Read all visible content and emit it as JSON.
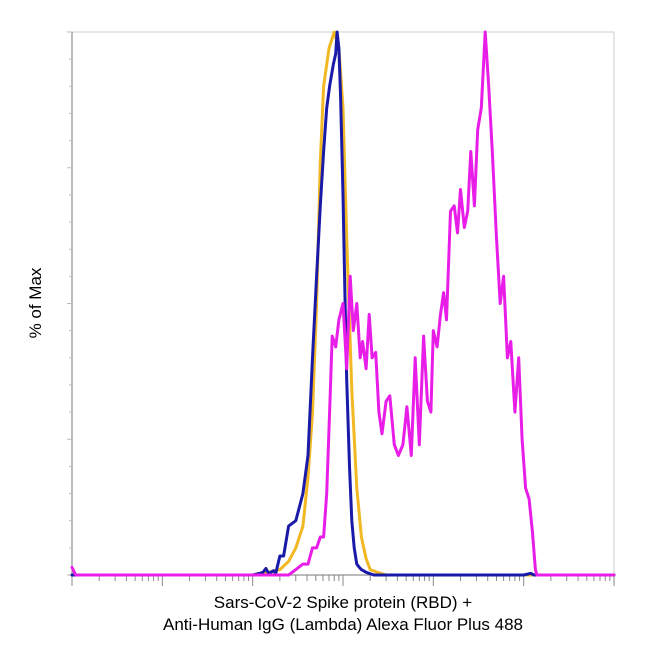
{
  "chart_data": {
    "type": "line",
    "title": "",
    "xlabel_lines": [
      "Sars-CoV-2 Spike protein (RBD) +",
      "Anti-Human IgG (Lambda) Alexa Fluor Plus 488"
    ],
    "ylabel": "% of Max",
    "xscale": "log",
    "xlim": [
      0.1,
      100000
    ],
    "ylim": [
      0,
      100
    ],
    "grid": false,
    "legend": "none",
    "series": [
      {
        "color": "#f2b824",
        "x": [
          0.1,
          1,
          3,
          10,
          12,
          15,
          20,
          25,
          30,
          36,
          41,
          46,
          51,
          56,
          61,
          70,
          80,
          90,
          100,
          110,
          125,
          142,
          160,
          180,
          200,
          240,
          300,
          500,
          1000,
          10000,
          100000
        ],
        "y": [
          0,
          0,
          0,
          0,
          0.3,
          0.5,
          1,
          2.5,
          5,
          9,
          18,
          30,
          50,
          76,
          90,
          97,
          100,
          97,
          86,
          62,
          34,
          16,
          7,
          3,
          1,
          0.5,
          0,
          0,
          0,
          0,
          0
        ]
      },
      {
        "color": "#1a1aa8",
        "x": [
          0.1,
          1,
          3,
          5,
          8,
          10,
          12,
          13,
          14,
          15,
          17,
          18,
          20,
          22,
          25,
          30,
          36,
          41,
          46,
          51,
          56,
          61,
          66,
          71,
          78,
          83,
          86,
          90,
          94,
          100,
          105,
          110,
          118,
          125,
          133,
          142,
          150,
          160,
          180,
          220,
          300,
          500,
          1000,
          3000,
          10000,
          12000,
          13000,
          20000,
          100000
        ],
        "y": [
          0,
          0,
          0,
          0,
          0,
          0,
          0.3,
          0.5,
          1.2,
          0.3,
          0.8,
          0.3,
          3.5,
          3.5,
          9,
          10,
          15,
          22,
          40,
          55,
          68,
          78,
          86,
          90,
          94,
          96,
          100,
          97,
          88,
          70,
          52,
          36,
          20,
          10,
          5,
          2,
          1.5,
          1,
          0.5,
          0,
          0,
          0,
          0,
          0,
          0,
          0.3,
          0,
          0,
          0
        ]
      },
      {
        "color": "#e81ee8",
        "x": [
          0.1,
          0.11,
          0.12,
          1,
          5,
          10,
          15,
          20,
          25,
          30,
          36,
          41,
          46,
          51,
          56,
          61,
          66,
          71,
          76,
          83,
          90,
          100,
          110,
          120,
          130,
          142,
          155,
          165,
          180,
          195,
          210,
          230,
          250,
          270,
          300,
          330,
          370,
          410,
          460,
          510,
          570,
          630,
          700,
          780,
          860,
          940,
          1000,
          1100,
          1200,
          1300,
          1400,
          1550,
          1700,
          1850,
          2000,
          2200,
          2400,
          2600,
          2850,
          3100,
          3400,
          3750,
          4100,
          4500,
          5000,
          5500,
          6000,
          6600,
          7200,
          8000,
          8800,
          9600,
          10500,
          11500,
          12500,
          13500,
          14000,
          100000
        ],
        "y": [
          1.4,
          0,
          0,
          0,
          0,
          0,
          0,
          0,
          0,
          1,
          2,
          2,
          5,
          5,
          7,
          7,
          15,
          30,
          44,
          42,
          47,
          50,
          38,
          55,
          45,
          50,
          40,
          43,
          38,
          48,
          40,
          41,
          30,
          26,
          32,
          33,
          24,
          22,
          24,
          31,
          22,
          40,
          24,
          44,
          32,
          30,
          45,
          42,
          48,
          52,
          47,
          67,
          68,
          63,
          71,
          64,
          67,
          78,
          68,
          82,
          86,
          100,
          90,
          78,
          62,
          50,
          55,
          40,
          43,
          30,
          40,
          25,
          16,
          14,
          8,
          1,
          0,
          0
        ]
      }
    ]
  }
}
